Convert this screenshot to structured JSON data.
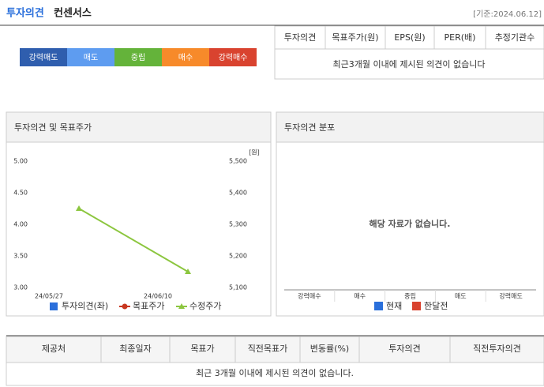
{
  "header": {
    "title_blue": "투자의견",
    "title": "컨센서스",
    "date": "[기준:2024.06.12]"
  },
  "rating_scale": {
    "labels": [
      "강력매도",
      "매도",
      "중립",
      "매수",
      "강력매수"
    ],
    "colors": [
      "#2f5eae",
      "#5e9cf0",
      "#64b33a",
      "#f78a2a",
      "#d9432f"
    ]
  },
  "summary_table": {
    "columns": [
      "투자의견",
      "목표주가(원)",
      "EPS(원)",
      "PER(배)",
      "추정기관수"
    ],
    "message": "최근3개월 이내에 제시된 의견이 없습니다"
  },
  "chart_data": [
    {
      "type": "line",
      "title": "투자의견 및 목표주가",
      "y2_unit": "[원]",
      "categories": [
        "24/05/27",
        "24/06/10"
      ],
      "ylim": [
        3,
        5
      ],
      "yticks": [
        {
          "value": 3,
          "label": "3.00"
        },
        {
          "value": 3.5,
          "label": "3.50"
        },
        {
          "value": 4,
          "label": "4.00"
        },
        {
          "value": 4.5,
          "label": "4.50"
        },
        {
          "value": 5,
          "label": "5.00"
        }
      ],
      "y2lim": [
        5100,
        5500
      ],
      "y2ticks": [
        {
          "value": 5100,
          "label": "5,100"
        },
        {
          "value": 5200,
          "label": "5,200"
        },
        {
          "value": 5300,
          "label": "5,300"
        },
        {
          "value": 5400,
          "label": "5,400"
        },
        {
          "value": 5500,
          "label": "5,500"
        }
      ],
      "series": [
        {
          "name": "투자의견(좌)",
          "color": "#2a6fdb",
          "marker": "square",
          "values": [
            null,
            null
          ]
        },
        {
          "name": "목표주가",
          "color": "#c8361f",
          "marker": "circle",
          "axis": "y2",
          "values": [
            null,
            null
          ]
        },
        {
          "name": "수정주가",
          "color": "#8cc63f",
          "marker": "triangle",
          "axis": "y2",
          "values": [
            5350,
            5150
          ]
        }
      ]
    },
    {
      "type": "bar",
      "title": "투자의견 분포",
      "message": "해당 자료가 없습니다.",
      "categories": [
        "강력매수",
        "매수",
        "중립",
        "매도",
        "강력매도"
      ],
      "series": [
        {
          "name": "현재",
          "color": "#2a6fdb",
          "values": [
            null,
            null,
            null,
            null,
            null
          ]
        },
        {
          "name": "한달전",
          "color": "#d9432f",
          "values": [
            null,
            null,
            null,
            null,
            null
          ]
        }
      ]
    }
  ],
  "bottom_table": {
    "columns": [
      "제공처",
      "최종일자",
      "목표가",
      "직전목표가",
      "변동률(%)",
      "투자의견",
      "직전투자의견"
    ],
    "message": "최근 3개월 이내에 제시된 의견이 없습니다."
  }
}
